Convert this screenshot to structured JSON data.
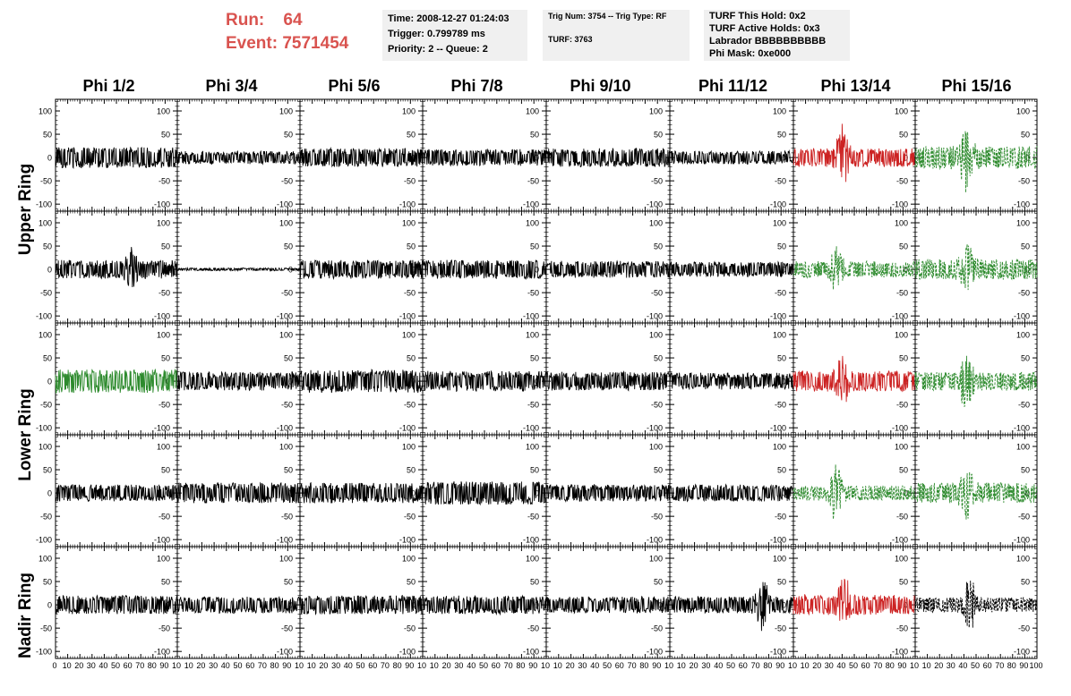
{
  "header": {
    "run_label": "Run:",
    "run_value": "64",
    "event_label": "Event:",
    "event_value": "7571454"
  },
  "info_time": {
    "time": "Time: 2008-12-27 01:24:03",
    "trigger": "Trigger: 0.799789 ms",
    "priority": "Priority: 2 -- Queue: 2"
  },
  "info_trig": {
    "trig": "Trig Num: 3754 -- Trig Type: RF",
    "turf": "TURF: 3763"
  },
  "info_turf": {
    "this_hold": "TURF This Hold: 0x2",
    "active_holds": "TURF Active Holds: 0x3",
    "labrador": "Labrador BBBBBBBBBB",
    "phi_mask": "Phi Mask: 0xe000"
  },
  "columns": [
    "Phi 1/2",
    "Phi 3/4",
    "Phi 5/6",
    "Phi 7/8",
    "Phi 9/10",
    "Phi 11/12",
    "Phi 13/14",
    "Phi 15/16"
  ],
  "rows": [
    "Upper Ring",
    "Lower Ring",
    "Nadir Ring"
  ],
  "colors": {
    "header_red": "#d9534f",
    "trace_black": "#000000",
    "trace_red": "#cc2222",
    "trace_green": "#2e8b2e",
    "box_bg": "#f0f0f0"
  },
  "chart_data": {
    "type": "line",
    "xlim": [
      0,
      100
    ],
    "ylim": [
      -115,
      125
    ],
    "y_ticks": [
      -100,
      -50,
      0,
      50,
      100
    ],
    "x_ticks": [
      0,
      10,
      20,
      30,
      40,
      50,
      60,
      70,
      80,
      90,
      100
    ],
    "x_tick_labels_first": [
      "0",
      "10",
      "20",
      "30",
      "40",
      "50",
      "60",
      "70",
      "80",
      "90",
      "10"
    ],
    "x_tick_labels_mid": [
      "10",
      "20",
      "30",
      "40",
      "50",
      "60",
      "70",
      "80",
      "90",
      "10"
    ],
    "x_tick_labels_last": [
      "10",
      "20",
      "30",
      "40",
      "50",
      "60",
      "70",
      "80",
      "90",
      "100"
    ],
    "panels": [
      {
        "row": 0,
        "col": 0,
        "color": "black",
        "dashed": false,
        "amp": 22,
        "burst": 0,
        "burst_at": 50
      },
      {
        "row": 0,
        "col": 1,
        "color": "black",
        "dashed": false,
        "amp": 14,
        "burst": 0,
        "burst_at": 50
      },
      {
        "row": 0,
        "col": 2,
        "color": "black",
        "dashed": false,
        "amp": 20,
        "burst": 0,
        "burst_at": 50
      },
      {
        "row": 0,
        "col": 3,
        "color": "black",
        "dashed": false,
        "amp": 18,
        "burst": 0,
        "burst_at": 50
      },
      {
        "row": 0,
        "col": 4,
        "color": "black",
        "dashed": false,
        "amp": 20,
        "burst": 0,
        "burst_at": 50
      },
      {
        "row": 0,
        "col": 5,
        "color": "black",
        "dashed": false,
        "amp": 14,
        "burst": 0,
        "burst_at": 50
      },
      {
        "row": 0,
        "col": 6,
        "color": "red",
        "dashed": false,
        "amp": 20,
        "burst": 60,
        "burst_at": 40
      },
      {
        "row": 0,
        "col": 7,
        "color": "green",
        "dashed": true,
        "amp": 25,
        "burst": 55,
        "burst_at": 42
      },
      {
        "row": 1,
        "col": 0,
        "color": "black",
        "dashed": false,
        "amp": 20,
        "burst": 30,
        "burst_at": 62
      },
      {
        "row": 1,
        "col": 1,
        "color": "black",
        "dashed": false,
        "amp": 3,
        "burst": 0,
        "burst_at": 50
      },
      {
        "row": 1,
        "col": 2,
        "color": "black",
        "dashed": false,
        "amp": 20,
        "burst": 0,
        "burst_at": 50
      },
      {
        "row": 1,
        "col": 3,
        "color": "black",
        "dashed": false,
        "amp": 20,
        "burst": 0,
        "burst_at": 50
      },
      {
        "row": 1,
        "col": 4,
        "color": "black",
        "dashed": false,
        "amp": 18,
        "burst": 0,
        "burst_at": 50
      },
      {
        "row": 1,
        "col": 5,
        "color": "black",
        "dashed": false,
        "amp": 16,
        "burst": 0,
        "burst_at": 50
      },
      {
        "row": 1,
        "col": 6,
        "color": "green",
        "dashed": true,
        "amp": 18,
        "burst": 40,
        "burst_at": 35
      },
      {
        "row": 1,
        "col": 7,
        "color": "green",
        "dashed": true,
        "amp": 22,
        "burst": 45,
        "burst_at": 43
      },
      {
        "row": 2,
        "col": 0,
        "color": "green",
        "dashed": false,
        "amp": 25,
        "burst": 0,
        "burst_at": 50
      },
      {
        "row": 2,
        "col": 1,
        "color": "black",
        "dashed": false,
        "amp": 20,
        "burst": 0,
        "burst_at": 50
      },
      {
        "row": 2,
        "col": 2,
        "color": "black",
        "dashed": false,
        "amp": 25,
        "burst": 0,
        "burst_at": 50
      },
      {
        "row": 2,
        "col": 3,
        "color": "black",
        "dashed": false,
        "amp": 22,
        "burst": 0,
        "burst_at": 50
      },
      {
        "row": 2,
        "col": 4,
        "color": "black",
        "dashed": false,
        "amp": 20,
        "burst": 0,
        "burst_at": 50
      },
      {
        "row": 2,
        "col": 5,
        "color": "black",
        "dashed": false,
        "amp": 18,
        "burst": 0,
        "burst_at": 50
      },
      {
        "row": 2,
        "col": 6,
        "color": "red",
        "dashed": false,
        "amp": 22,
        "burst": 45,
        "burst_at": 40
      },
      {
        "row": 2,
        "col": 7,
        "color": "green",
        "dashed": true,
        "amp": 20,
        "burst": 50,
        "burst_at": 42
      },
      {
        "row": 3,
        "col": 0,
        "color": "black",
        "dashed": false,
        "amp": 18,
        "burst": 0,
        "burst_at": 50
      },
      {
        "row": 3,
        "col": 1,
        "color": "black",
        "dashed": false,
        "amp": 22,
        "burst": 0,
        "burst_at": 50
      },
      {
        "row": 3,
        "col": 2,
        "color": "black",
        "dashed": false,
        "amp": 22,
        "burst": 0,
        "burst_at": 50
      },
      {
        "row": 3,
        "col": 3,
        "color": "black",
        "dashed": false,
        "amp": 25,
        "burst": 0,
        "burst_at": 50
      },
      {
        "row": 3,
        "col": 4,
        "color": "black",
        "dashed": false,
        "amp": 18,
        "burst": 0,
        "burst_at": 50
      },
      {
        "row": 3,
        "col": 5,
        "color": "black",
        "dashed": false,
        "amp": 18,
        "burst": 0,
        "burst_at": 50
      },
      {
        "row": 3,
        "col": 6,
        "color": "green",
        "dashed": true,
        "amp": 16,
        "burst": 55,
        "burst_at": 35
      },
      {
        "row": 3,
        "col": 7,
        "color": "green",
        "dashed": true,
        "amp": 22,
        "burst": 45,
        "burst_at": 43
      },
      {
        "row": 4,
        "col": 0,
        "color": "black",
        "dashed": false,
        "amp": 20,
        "burst": 0,
        "burst_at": 50
      },
      {
        "row": 4,
        "col": 1,
        "color": "black",
        "dashed": false,
        "amp": 18,
        "burst": 0,
        "burst_at": 50
      },
      {
        "row": 4,
        "col": 2,
        "color": "black",
        "dashed": false,
        "amp": 20,
        "burst": 0,
        "burst_at": 50
      },
      {
        "row": 4,
        "col": 3,
        "color": "black",
        "dashed": false,
        "amp": 20,
        "burst": 0,
        "burst_at": 50
      },
      {
        "row": 4,
        "col": 4,
        "color": "black",
        "dashed": false,
        "amp": 18,
        "burst": 0,
        "burst_at": 50
      },
      {
        "row": 4,
        "col": 5,
        "color": "black",
        "dashed": false,
        "amp": 18,
        "burst": 45,
        "burst_at": 75
      },
      {
        "row": 4,
        "col": 6,
        "color": "red",
        "dashed": false,
        "amp": 22,
        "burst": 45,
        "burst_at": 42
      },
      {
        "row": 4,
        "col": 7,
        "color": "black",
        "dashed": true,
        "amp": 16,
        "burst": 50,
        "burst_at": 45
      }
    ]
  }
}
